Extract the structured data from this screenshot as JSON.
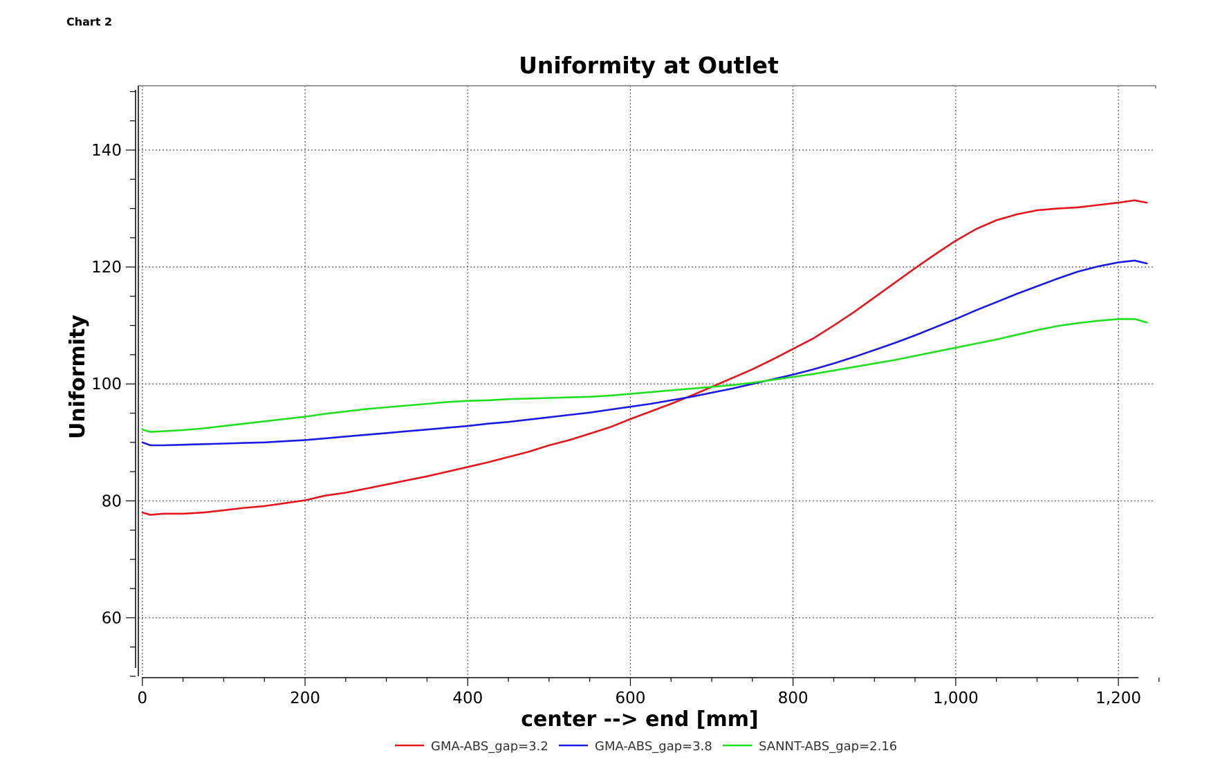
{
  "page": {
    "caption": "Chart 2"
  },
  "chart_data": {
    "type": "line",
    "title": "Uniformity at Outlet",
    "xlabel": "center --> end [mm]",
    "ylabel": "Uniformity",
    "xlim": [
      -5,
      1245
    ],
    "ylim": [
      50,
      151
    ],
    "xticks": [
      0,
      200,
      400,
      600,
      800,
      1000,
      1200
    ],
    "xtick_labels": [
      "0",
      "200",
      "400",
      "600",
      "800",
      "1,000",
      "1,200"
    ],
    "yticks": [
      60,
      80,
      100,
      120,
      140
    ],
    "ytick_labels": [
      "60",
      "80",
      "100",
      "120",
      "140"
    ],
    "grid": true,
    "legend_position": "bottom",
    "series": [
      {
        "name": "GMA-ABS_gap=3.2",
        "color": "#e8141b",
        "points": [
          [
            0,
            78.0
          ],
          [
            10,
            77.6
          ],
          [
            25,
            77.8
          ],
          [
            50,
            77.8
          ],
          [
            75,
            78.0
          ],
          [
            100,
            78.4
          ],
          [
            125,
            78.8
          ],
          [
            150,
            79.1
          ],
          [
            175,
            79.6
          ],
          [
            200,
            80.1
          ],
          [
            225,
            80.9
          ],
          [
            250,
            81.4
          ],
          [
            275,
            82.1
          ],
          [
            300,
            82.8
          ],
          [
            325,
            83.5
          ],
          [
            350,
            84.2
          ],
          [
            375,
            85.0
          ],
          [
            400,
            85.8
          ],
          [
            425,
            86.6
          ],
          [
            450,
            87.5
          ],
          [
            475,
            88.4
          ],
          [
            500,
            89.5
          ],
          [
            525,
            90.4
          ],
          [
            550,
            91.5
          ],
          [
            575,
            92.6
          ],
          [
            600,
            94.0
          ],
          [
            625,
            95.3
          ],
          [
            650,
            96.6
          ],
          [
            675,
            98.0
          ],
          [
            700,
            99.5
          ],
          [
            725,
            101.0
          ],
          [
            750,
            102.5
          ],
          [
            775,
            104.2
          ],
          [
            800,
            106.0
          ],
          [
            825,
            107.8
          ],
          [
            850,
            110.0
          ],
          [
            875,
            112.3
          ],
          [
            900,
            114.8
          ],
          [
            925,
            117.3
          ],
          [
            950,
            119.8
          ],
          [
            975,
            122.2
          ],
          [
            1000,
            124.5
          ],
          [
            1025,
            126.5
          ],
          [
            1050,
            128.0
          ],
          [
            1075,
            129.0
          ],
          [
            1100,
            129.7
          ],
          [
            1125,
            130.0
          ],
          [
            1150,
            130.2
          ],
          [
            1175,
            130.6
          ],
          [
            1200,
            131.0
          ],
          [
            1220,
            131.4
          ],
          [
            1235,
            131.0
          ]
        ]
      },
      {
        "name": "GMA-ABS_gap=3.8",
        "color": "#1a1ae6",
        "points": [
          [
            0,
            90.0
          ],
          [
            10,
            89.5
          ],
          [
            25,
            89.5
          ],
          [
            50,
            89.6
          ],
          [
            75,
            89.7
          ],
          [
            100,
            89.8
          ],
          [
            125,
            89.9
          ],
          [
            150,
            90.0
          ],
          [
            175,
            90.2
          ],
          [
            200,
            90.4
          ],
          [
            225,
            90.7
          ],
          [
            250,
            91.0
          ],
          [
            275,
            91.3
          ],
          [
            300,
            91.6
          ],
          [
            325,
            91.9
          ],
          [
            350,
            92.2
          ],
          [
            375,
            92.5
          ],
          [
            400,
            92.8
          ],
          [
            425,
            93.2
          ],
          [
            450,
            93.5
          ],
          [
            475,
            93.9
          ],
          [
            500,
            94.3
          ],
          [
            525,
            94.7
          ],
          [
            550,
            95.1
          ],
          [
            575,
            95.6
          ],
          [
            600,
            96.1
          ],
          [
            625,
            96.6
          ],
          [
            650,
            97.2
          ],
          [
            675,
            97.8
          ],
          [
            700,
            98.5
          ],
          [
            725,
            99.2
          ],
          [
            750,
            100.0
          ],
          [
            775,
            100.8
          ],
          [
            800,
            101.6
          ],
          [
            825,
            102.5
          ],
          [
            850,
            103.5
          ],
          [
            875,
            104.6
          ],
          [
            900,
            105.8
          ],
          [
            925,
            107.0
          ],
          [
            950,
            108.3
          ],
          [
            975,
            109.7
          ],
          [
            1000,
            111.1
          ],
          [
            1025,
            112.6
          ],
          [
            1050,
            114.0
          ],
          [
            1075,
            115.4
          ],
          [
            1100,
            116.7
          ],
          [
            1125,
            118.0
          ],
          [
            1150,
            119.2
          ],
          [
            1175,
            120.1
          ],
          [
            1200,
            120.8
          ],
          [
            1220,
            121.1
          ],
          [
            1235,
            120.6
          ]
        ]
      },
      {
        "name": "SANNT-ABS_gap=2.16",
        "color": "#1fdf1f",
        "points": [
          [
            0,
            92.2
          ],
          [
            10,
            91.8
          ],
          [
            25,
            91.9
          ],
          [
            50,
            92.1
          ],
          [
            75,
            92.4
          ],
          [
            100,
            92.8
          ],
          [
            125,
            93.2
          ],
          [
            150,
            93.6
          ],
          [
            175,
            94.0
          ],
          [
            200,
            94.4
          ],
          [
            225,
            94.9
          ],
          [
            250,
            95.3
          ],
          [
            275,
            95.7
          ],
          [
            300,
            96.0
          ],
          [
            325,
            96.3
          ],
          [
            350,
            96.6
          ],
          [
            375,
            96.9
          ],
          [
            400,
            97.1
          ],
          [
            425,
            97.2
          ],
          [
            450,
            97.4
          ],
          [
            475,
            97.5
          ],
          [
            500,
            97.6
          ],
          [
            525,
            97.7
          ],
          [
            550,
            97.8
          ],
          [
            575,
            98.0
          ],
          [
            600,
            98.3
          ],
          [
            625,
            98.6
          ],
          [
            650,
            98.9
          ],
          [
            675,
            99.2
          ],
          [
            700,
            99.5
          ],
          [
            725,
            99.8
          ],
          [
            750,
            100.2
          ],
          [
            775,
            100.7
          ],
          [
            800,
            101.2
          ],
          [
            825,
            101.7
          ],
          [
            850,
            102.3
          ],
          [
            875,
            102.9
          ],
          [
            900,
            103.5
          ],
          [
            925,
            104.1
          ],
          [
            950,
            104.8
          ],
          [
            975,
            105.5
          ],
          [
            1000,
            106.2
          ],
          [
            1025,
            106.9
          ],
          [
            1050,
            107.6
          ],
          [
            1075,
            108.4
          ],
          [
            1100,
            109.2
          ],
          [
            1125,
            109.9
          ],
          [
            1150,
            110.4
          ],
          [
            1175,
            110.8
          ],
          [
            1200,
            111.1
          ],
          [
            1220,
            111.1
          ],
          [
            1235,
            110.5
          ]
        ]
      }
    ]
  }
}
